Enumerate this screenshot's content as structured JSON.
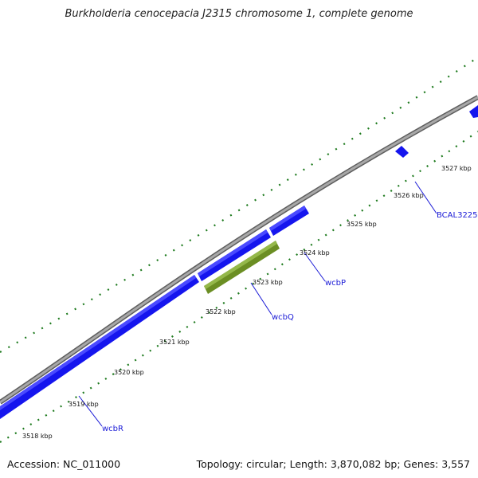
{
  "title": "Burkholderia cenocepacia J2315 chromosome 1, complete genome",
  "footer": {
    "accession": "Accession: NC_011000",
    "summary": "Topology: circular; Length: 3,870,082 bp; Genes: 3,557"
  },
  "ticks": [
    "3518 kbp",
    "3519 kbp",
    "3520 kbp",
    "3521 kbp",
    "3522 kbp",
    "3523 kbp",
    "3524 kbp",
    "3525 kbp",
    "3526 kbp",
    "3527 kbp"
  ],
  "genes": [
    {
      "name": "wcbR",
      "strand": "forward",
      "color": "#1515ee"
    },
    {
      "name": "wcbQ",
      "strand": "reverse",
      "color": "#6b8e23"
    },
    {
      "name": "wcbP",
      "strand": "forward",
      "color": "#1515ee"
    },
    {
      "name": "BCAL3225",
      "strand": "forward",
      "color": "#1515ee"
    }
  ],
  "colors": {
    "backbone": "#8c8c8c",
    "tick": "#1d7a1d",
    "forward_gene": "#1515ee",
    "reverse_gene": "#6b8e23",
    "label": "#1a1ad6"
  }
}
